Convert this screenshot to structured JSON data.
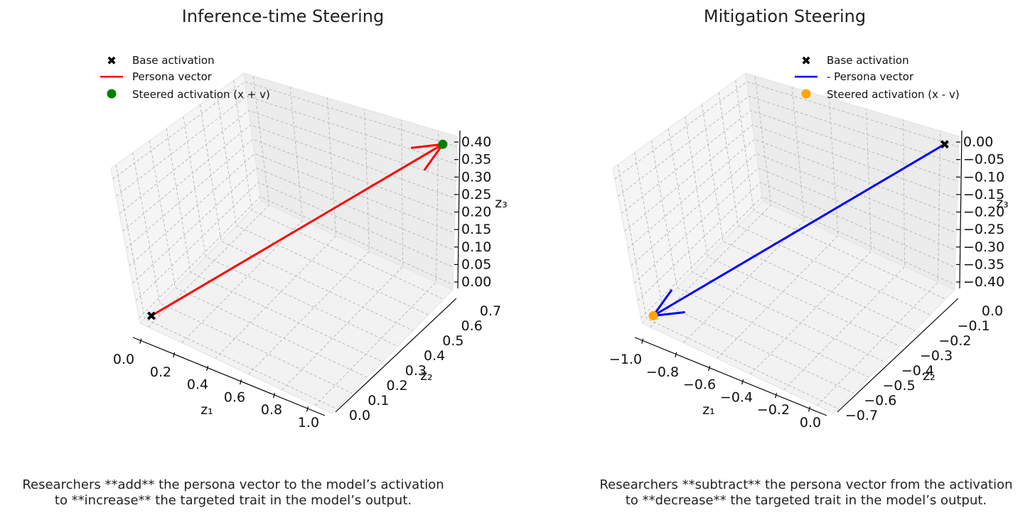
{
  "chart_data": [
    {
      "type": "line",
      "title": "Inference-time Steering",
      "xlabel": "z₁",
      "ylabel": "z₂",
      "zlabel": "z₃",
      "x_ticks": [
        "0.0",
        "0.2",
        "0.4",
        "0.6",
        "0.8",
        "1.0"
      ],
      "y_ticks": [
        "0.0",
        "0.1",
        "0.2",
        "0.3",
        "0.4",
        "0.5",
        "0.6",
        "0.7"
      ],
      "z_ticks": [
        "0.00",
        "0.05",
        "0.10",
        "0.15",
        "0.20",
        "0.25",
        "0.30",
        "0.35",
        "0.40"
      ],
      "base_point": {
        "x": 0.0,
        "y": 0.0,
        "z": 0.0
      },
      "vector": {
        "x": 1.0,
        "y": 0.7,
        "z": 0.4
      },
      "steered_point": {
        "x": 1.0,
        "y": 0.7,
        "z": 0.4
      },
      "legend": [
        "Base activation",
        "Persona vector",
        "Steered activation (x + v)"
      ],
      "legend_position": "top-left",
      "vector_color": "#ff0000",
      "steered_color": "#008000",
      "caption_line1": "Researchers **add** the persona vector to the model’s activation",
      "caption_line2": "to **increase** the targeted trait in the model’s output."
    },
    {
      "type": "line",
      "title": "Mitigation Steering",
      "xlabel": "z₁",
      "ylabel": "z₂",
      "zlabel": "z₃",
      "x_ticks": [
        "−1.0",
        "−0.8",
        "−0.6",
        "−0.4",
        "−0.2",
        "0.0"
      ],
      "y_ticks": [
        "−0.7",
        "−0.6",
        "−0.5",
        "−0.4",
        "−0.3",
        "−0.2",
        "−0.1",
        "0.0"
      ],
      "z_ticks": [
        "−0.40",
        "−0.35",
        "−0.30",
        "−0.25",
        "−0.20",
        "−0.15",
        "−0.10",
        "−0.05",
        "0.00"
      ],
      "base_point": {
        "x": 0.0,
        "y": 0.0,
        "z": 0.0
      },
      "vector": {
        "x": -1.0,
        "y": -0.7,
        "z": -0.4
      },
      "steered_point": {
        "x": -1.0,
        "y": -0.7,
        "z": -0.4
      },
      "legend": [
        "Base activation",
        "- Persona vector",
        "Steered activation (x - v)"
      ],
      "legend_position": "top-right",
      "vector_color": "#0000ff",
      "steered_color": "#ffa500",
      "caption_line1": "Researchers **subtract** the persona vector from the activation",
      "caption_line2": "to **decrease** the targeted trait in the model’s output."
    }
  ]
}
